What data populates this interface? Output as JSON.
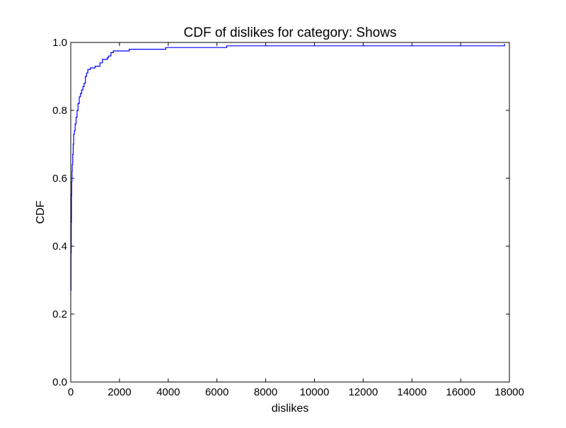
{
  "chart_data": {
    "type": "line",
    "title": "CDF of dislikes for category: Shows",
    "xlabel": "dislikes",
    "ylabel": "CDF",
    "xlim": [
      0,
      18000
    ],
    "ylim": [
      0.0,
      1.0
    ],
    "x_ticks": [
      "0",
      "2000",
      "4000",
      "6000",
      "8000",
      "10000",
      "12000",
      "14000",
      "16000",
      "18000"
    ],
    "y_ticks": [
      "0.0",
      "0.2",
      "0.4",
      "0.6",
      "0.8",
      "1.0"
    ],
    "grid": false,
    "legend": "none",
    "series": [
      {
        "color": "#0000ff",
        "step": true,
        "x": [
          0,
          10,
          20,
          30,
          40,
          50,
          60,
          80,
          100,
          120,
          150,
          180,
          220,
          260,
          300,
          350,
          400,
          450,
          500,
          550,
          600,
          650,
          700,
          800,
          900,
          1000,
          1100,
          1200,
          1300,
          1400,
          1500,
          1550,
          1650,
          1750,
          2400,
          3900,
          6400,
          17800
        ],
        "y": [
          0.27,
          0.38,
          0.47,
          0.55,
          0.59,
          0.62,
          0.64,
          0.67,
          0.7,
          0.73,
          0.74,
          0.76,
          0.78,
          0.8,
          0.82,
          0.84,
          0.85,
          0.86,
          0.87,
          0.88,
          0.9,
          0.91,
          0.92,
          0.925,
          0.925,
          0.93,
          0.93,
          0.94,
          0.95,
          0.95,
          0.955,
          0.96,
          0.97,
          0.975,
          0.98,
          0.985,
          0.99,
          0.995
        ]
      }
    ]
  }
}
